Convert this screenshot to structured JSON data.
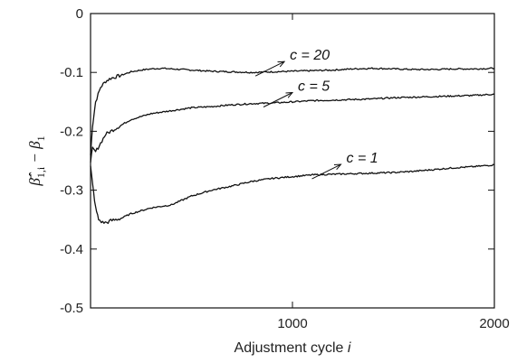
{
  "chart_data": {
    "type": "line",
    "xlabel": "Adjustment cycle",
    "xlabel_var": "i",
    "ylabel_parts": [
      "β̄̂",
      "1,i",
      " − β",
      "1"
    ],
    "xlim": [
      0,
      2000
    ],
    "ylim": [
      -0.5,
      0
    ],
    "xticks": [
      1000,
      2000
    ],
    "yticks": [
      0,
      -0.1,
      -0.2,
      -0.3,
      -0.4,
      -0.5
    ],
    "ytick_labels": [
      "0",
      "-0.1",
      "-0.2",
      "-0.3",
      "-0.4",
      "-0.5"
    ],
    "xtick_labels": [
      "1000",
      "2000"
    ],
    "grid": false,
    "series": [
      {
        "name": "c = 20",
        "x": [
          0,
          10,
          25,
          50,
          75,
          100,
          150,
          200,
          250,
          300,
          350,
          400,
          500,
          600,
          700,
          800,
          900,
          1000,
          1100,
          1200,
          1300,
          1400,
          1500,
          1600,
          1700,
          1800,
          1900,
          2000
        ],
        "y": [
          -0.24,
          -0.19,
          -0.15,
          -0.125,
          -0.115,
          -0.11,
          -0.105,
          -0.099,
          -0.096,
          -0.094,
          -0.093,
          -0.094,
          -0.096,
          -0.098,
          -0.099,
          -0.1,
          -0.099,
          -0.098,
          -0.097,
          -0.096,
          -0.094,
          -0.093,
          -0.094,
          -0.095,
          -0.095,
          -0.094,
          -0.094,
          -0.093
        ]
      },
      {
        "name": "c = 5",
        "x": [
          0,
          10,
          25,
          50,
          75,
          100,
          150,
          200,
          250,
          300,
          400,
          500,
          600,
          700,
          800,
          900,
          1000,
          1100,
          1200,
          1300,
          1400,
          1500,
          1600,
          1700,
          1800,
          1900,
          2000
        ],
        "y": [
          -0.25,
          -0.23,
          -0.235,
          -0.22,
          -0.205,
          -0.2,
          -0.19,
          -0.18,
          -0.175,
          -0.17,
          -0.165,
          -0.16,
          -0.158,
          -0.155,
          -0.153,
          -0.152,
          -0.15,
          -0.148,
          -0.147,
          -0.146,
          -0.145,
          -0.143,
          -0.142,
          -0.141,
          -0.14,
          -0.139,
          -0.137
        ]
      },
      {
        "name": "c = 1",
        "x": [
          0,
          10,
          25,
          40,
          60,
          80,
          100,
          150,
          200,
          250,
          300,
          400,
          500,
          600,
          700,
          800,
          900,
          1000,
          1100,
          1200,
          1300,
          1400,
          1500,
          1600,
          1700,
          1800,
          1900,
          2000
        ],
        "y": [
          -0.26,
          -0.29,
          -0.33,
          -0.35,
          -0.355,
          -0.355,
          -0.352,
          -0.348,
          -0.34,
          -0.335,
          -0.33,
          -0.325,
          -0.31,
          -0.3,
          -0.293,
          -0.285,
          -0.28,
          -0.277,
          -0.274,
          -0.273,
          -0.272,
          -0.271,
          -0.27,
          -0.268,
          -0.265,
          -0.262,
          -0.26,
          -0.257
        ]
      }
    ],
    "annotations": [
      {
        "text": "c = 20",
        "series": 0,
        "at_x": 960
      },
      {
        "text": "c = 5",
        "series": 1,
        "at_x": 1000
      },
      {
        "text": "c = 1",
        "series": 2,
        "at_x": 1240
      }
    ]
  }
}
